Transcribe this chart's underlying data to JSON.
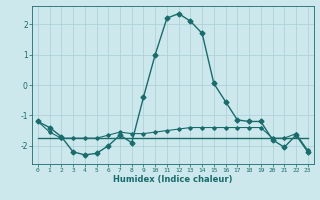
{
  "title": "",
  "xlabel": "Humidex (Indice chaleur)",
  "bg_color": "#cce8ec",
  "line_color": "#1a6b6b",
  "grid_color": "#aacdd4",
  "xlim": [
    -0.5,
    23.5
  ],
  "ylim": [
    -2.6,
    2.6
  ],
  "yticks": [
    -2,
    -1,
    0,
    1,
    2
  ],
  "xticks": [
    0,
    1,
    2,
    3,
    4,
    5,
    6,
    7,
    8,
    9,
    10,
    11,
    12,
    13,
    14,
    15,
    16,
    17,
    18,
    19,
    20,
    21,
    22,
    23
  ],
  "line1_x": [
    0,
    1,
    2,
    3,
    4,
    5,
    6,
    7,
    8,
    9,
    10,
    11,
    12,
    13,
    14,
    15,
    16,
    17,
    18,
    19,
    20,
    21,
    22,
    23
  ],
  "line1_y": [
    -1.2,
    -1.4,
    -1.7,
    -2.2,
    -2.3,
    -2.25,
    -2.0,
    -1.65,
    -1.9,
    -0.4,
    1.0,
    2.2,
    2.35,
    2.1,
    1.7,
    0.05,
    -0.55,
    -1.15,
    -1.2,
    -1.2,
    -1.8,
    -2.05,
    -1.65,
    -2.2
  ],
  "line2_x": [
    0,
    1,
    2,
    3,
    4,
    5,
    6,
    7,
    8,
    9,
    10,
    11,
    12,
    13,
    14,
    15,
    16,
    17,
    18,
    19,
    20,
    21,
    22,
    23
  ],
  "line2_y": [
    -1.75,
    -1.75,
    -1.75,
    -1.75,
    -1.75,
    -1.75,
    -1.75,
    -1.75,
    -1.75,
    -1.75,
    -1.75,
    -1.75,
    -1.75,
    -1.75,
    -1.75,
    -1.75,
    -1.75,
    -1.75,
    -1.75,
    -1.75,
    -1.75,
    -1.75,
    -1.75,
    -1.75
  ],
  "line3_x": [
    0,
    1,
    2,
    3,
    4,
    5,
    6,
    7,
    8,
    9,
    10,
    11,
    12,
    13,
    14,
    15,
    16,
    17,
    18,
    19,
    20,
    21,
    22,
    23
  ],
  "line3_y": [
    -1.2,
    -1.55,
    -1.75,
    -1.75,
    -1.75,
    -1.75,
    -1.65,
    -1.55,
    -1.6,
    -1.6,
    -1.55,
    -1.5,
    -1.45,
    -1.4,
    -1.4,
    -1.4,
    -1.4,
    -1.4,
    -1.4,
    -1.4,
    -1.75,
    -1.75,
    -1.6,
    -2.15
  ]
}
